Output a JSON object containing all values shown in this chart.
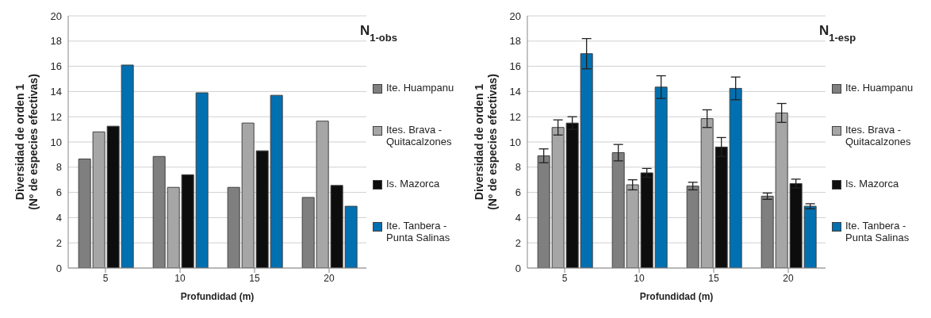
{
  "chart_data": [
    {
      "type": "bar",
      "title": "N$_{1-obs}$",
      "xlabel": "Profundidad (m)",
      "ylabel": "Diversidad de orden 1\n(Nº de especies efectivas)",
      "categories": [
        "5",
        "10",
        "15",
        "20"
      ],
      "ylim": [
        0,
        20
      ],
      "yticks": [
        0,
        2,
        4,
        6,
        8,
        10,
        12,
        14,
        16,
        18,
        20
      ],
      "grid": "y",
      "legend": "right",
      "series": [
        {
          "name": "Ite. Huampanu",
          "color": "#7f7f7f",
          "values": [
            8.65,
            8.85,
            6.4,
            5.6
          ]
        },
        {
          "name": "Ites. Brava - Quitacalzones",
          "color": "#a6a6a6",
          "values": [
            10.8,
            6.4,
            11.5,
            11.65
          ]
        },
        {
          "name": "Is. Mazorca",
          "color": "#0d0d0d",
          "values": [
            11.25,
            7.4,
            9.3,
            6.55
          ]
        },
        {
          "name": "Ite. Tanbera - Punta Salinas",
          "color": "#0070b0",
          "values": [
            16.1,
            13.9,
            13.7,
            4.9
          ]
        }
      ]
    },
    {
      "type": "bar",
      "title": "N$_{1-esp}$",
      "xlabel": "Profundidad (m)",
      "ylabel": "Diversidad de orden 1\n(Nº de especies efectivas)",
      "categories": [
        "5",
        "10",
        "15",
        "20"
      ],
      "ylim": [
        0,
        20
      ],
      "yticks": [
        0,
        2,
        4,
        6,
        8,
        10,
        12,
        14,
        16,
        18,
        20
      ],
      "grid": "y",
      "legend": "right",
      "series": [
        {
          "name": "Ite. Huampanu",
          "color": "#7f7f7f",
          "values": [
            8.9,
            9.15,
            6.5,
            5.7
          ],
          "errors": [
            0.55,
            0.65,
            0.3,
            0.25
          ]
        },
        {
          "name": "Ites. Brava - Quitacalzones",
          "color": "#a6a6a6",
          "values": [
            11.15,
            6.6,
            11.85,
            12.3
          ],
          "errors": [
            0.6,
            0.4,
            0.7,
            0.75
          ]
        },
        {
          "name": "Is. Mazorca",
          "color": "#0d0d0d",
          "values": [
            11.5,
            7.55,
            9.6,
            6.7
          ],
          "errors": [
            0.5,
            0.35,
            0.75,
            0.35
          ]
        },
        {
          "name": "Ite. Tanbera - Punta Salinas",
          "color": "#0070b0",
          "values": [
            17.0,
            14.35,
            14.25,
            4.9
          ],
          "errors": [
            1.2,
            0.9,
            0.9,
            0.2
          ]
        }
      ]
    }
  ]
}
